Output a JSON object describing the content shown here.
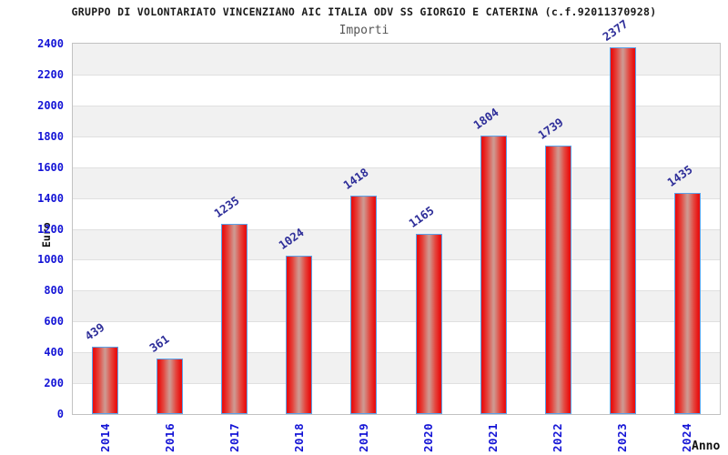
{
  "title": "GRUPPO DI VOLONTARIATO VINCENZIANO AIC ITALIA ODV SS GIORGIO E CATERINA (c.f.92011370928)",
  "subtitle": "Importi",
  "chart_data": {
    "type": "bar",
    "title": "GRUPPO DI VOLONTARIATO VINCENZIANO AIC ITALIA ODV SS GIORGIO E CATERINA (c.f.92011370928)",
    "subtitle": "Importi",
    "xlabel": "Anno",
    "ylabel": "Euro",
    "categories": [
      "2014",
      "2016",
      "2017",
      "2018",
      "2019",
      "2020",
      "2021",
      "2022",
      "2023",
      "2024"
    ],
    "values": [
      439,
      361,
      1235,
      1024,
      1418,
      1165,
      1804,
      1739,
      2377,
      1435
    ],
    "ylim": [
      0,
      2400
    ],
    "ytick_step": 200,
    "ytick_labels": [
      "0",
      "200",
      "400",
      "600",
      "800",
      "1000",
      "1200",
      "1400",
      "1600",
      "1800",
      "2000",
      "2200",
      "2400"
    ],
    "grid": "horizontal gridlines with alternating gray/white bands",
    "legend": "none",
    "bar_labels_shown": true,
    "bar_label_rotation_deg": -35,
    "xtick_rotation_deg": -90
  },
  "colors": {
    "background": "#ffffff",
    "title_text": "#1a1a1a",
    "subtitle_text": "#555555",
    "axis_tick_text": "#1414d6",
    "bar_value_text": "#2e2e99",
    "axis_title_text": "#111111",
    "plot_border": "#c2c2c2",
    "gridline": "#e0e0e0",
    "band_gray": "#f1f1f1",
    "band_white": "#ffffff",
    "bar_edge_red": "#e81212",
    "bar_mid_red": "#e4443c",
    "bar_center_highlight": "#cf978f",
    "bar_border_blue": "#5aa2ea"
  }
}
